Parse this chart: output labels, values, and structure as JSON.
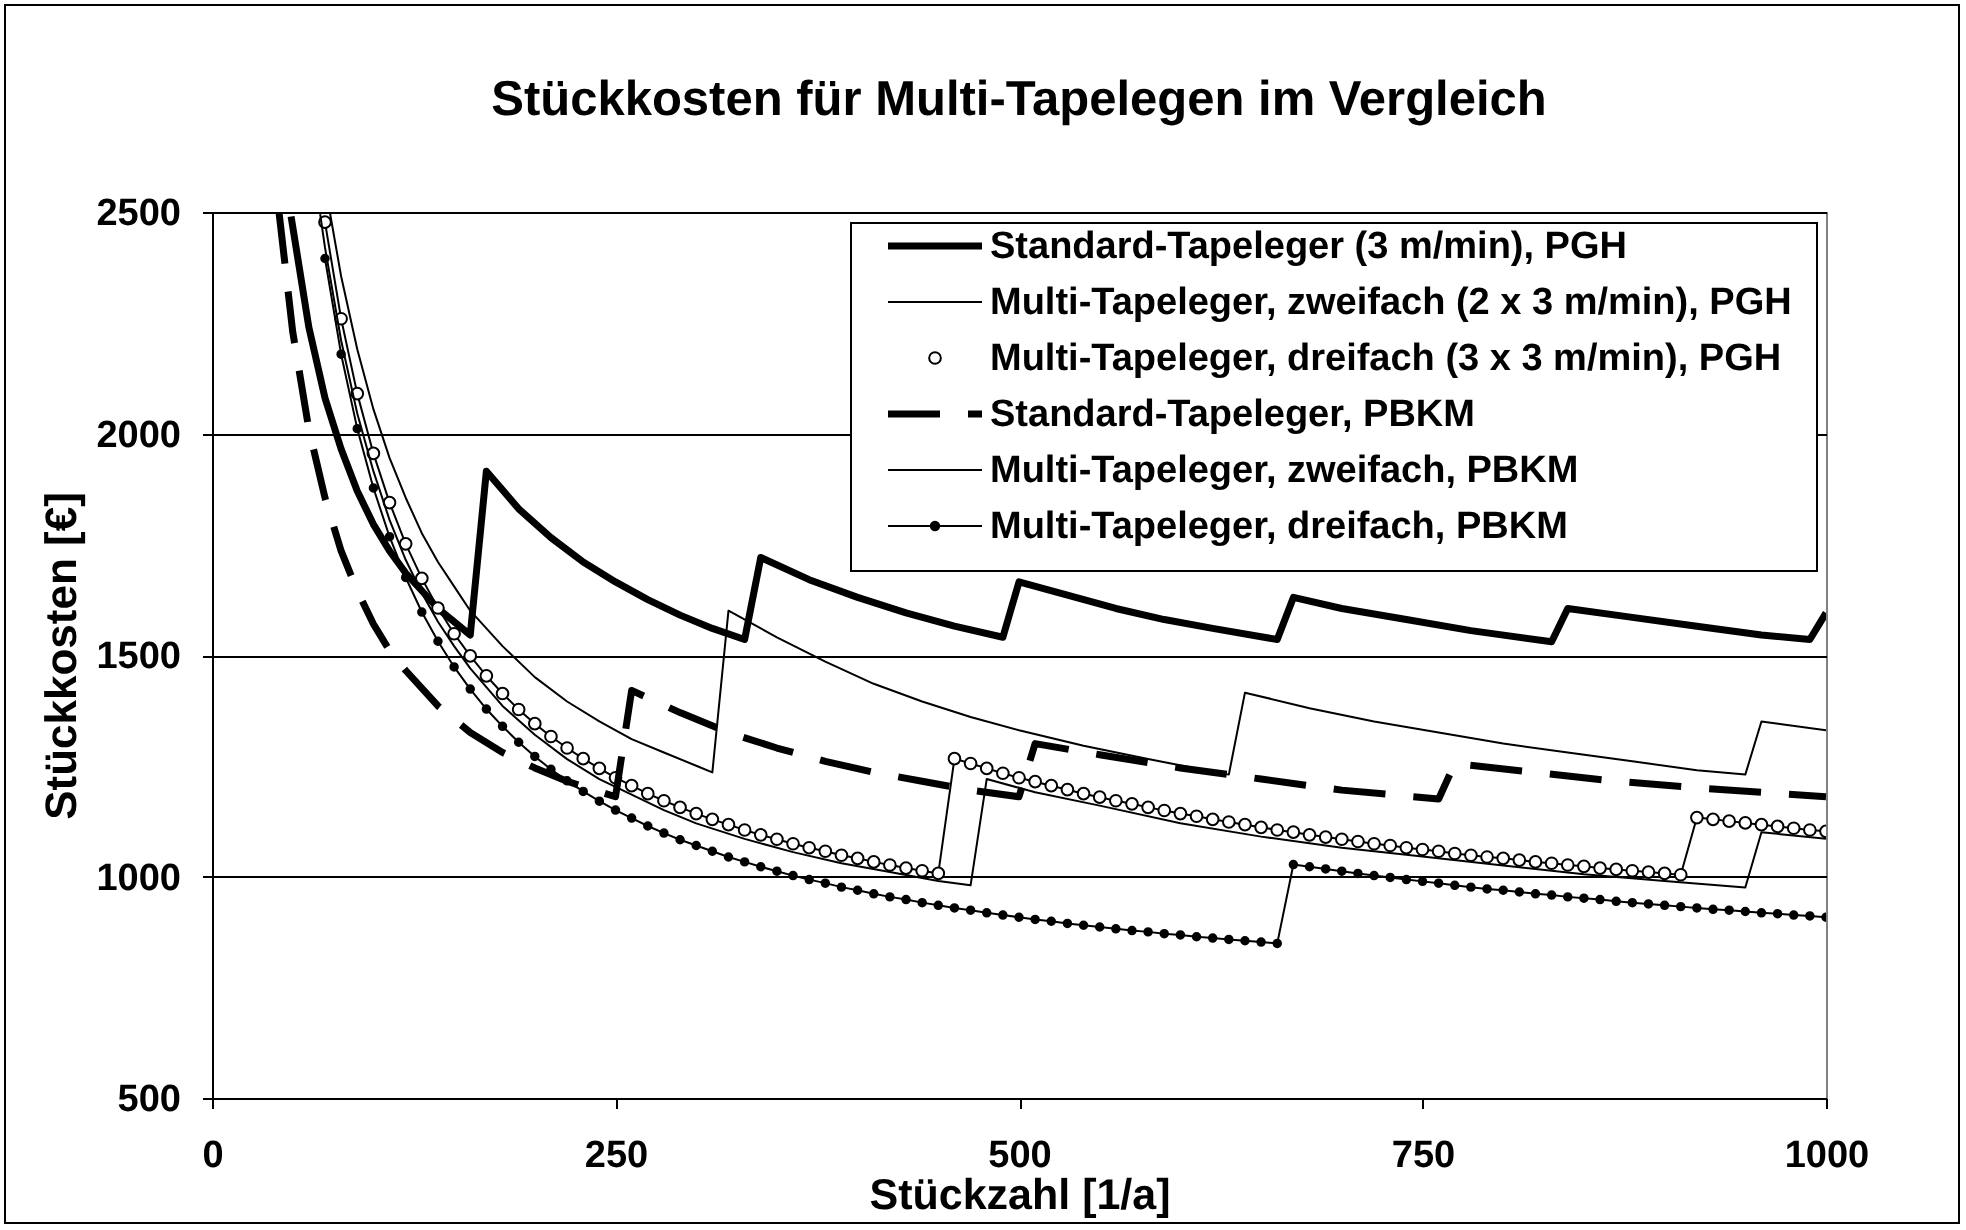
{
  "chart_data": {
    "type": "line",
    "title": "Stückkosten für Multi-Tapelegen im Vergleich",
    "xlabel": "Stückzahl [1/a]",
    "ylabel": "Stückkosten [€]",
    "xlim": [
      0,
      1000
    ],
    "xticks": [
      0,
      250,
      500,
      750,
      1000
    ],
    "ylim": [
      500,
      2500
    ],
    "yticks": [
      500,
      1000,
      1500,
      2000,
      2500
    ],
    "grid": "y",
    "legend": "top right",
    "series": [
      {
        "name": "Standard-Tapeleger (3 m/min), PGH",
        "color": "#000000",
        "x": [
          49,
          60,
          70,
          80,
          90,
          100,
          110,
          120,
          130,
          140,
          150,
          160,
          170,
          190,
          210,
          230,
          250,
          270,
          290,
          310,
          330,
          340,
          370,
          400,
          430,
          460,
          490,
          500,
          530,
          560,
          590,
          620,
          660,
          670,
          700,
          740,
          780,
          830,
          840,
          880,
          920,
          960,
          990,
          1000
        ],
        "values": [
          2490,
          2240,
          2080,
          1965,
          1870,
          1795,
          1735,
          1685,
          1645,
          1605,
          1575,
          1545,
          1915,
          1830,
          1765,
          1710,
          1665,
          1625,
          1590,
          1560,
          1535,
          1720,
          1670,
          1630,
          1595,
          1565,
          1540,
          1665,
          1635,
          1605,
          1580,
          1560,
          1535,
          1630,
          1605,
          1580,
          1555,
          1530,
          1605,
          1585,
          1565,
          1545,
          1535,
          1595
        ]
      },
      {
        "name": "Multi-Tapeleger, zweifach (2 x 3 m/min), PGH",
        "color": "#000000",
        "x": [
          73,
          80,
          90,
          100,
          110,
          120,
          130,
          140,
          150,
          160,
          180,
          200,
          220,
          240,
          260,
          280,
          300,
          310,
          320,
          350,
          380,
          410,
          440,
          470,
          500,
          540,
          580,
          630,
          640,
          680,
          720,
          760,
          800,
          840,
          880,
          920,
          950,
          960,
          1000
        ],
        "values": [
          2500,
          2355,
          2190,
          2055,
          1945,
          1855,
          1775,
          1710,
          1655,
          1600,
          1520,
          1450,
          1395,
          1350,
          1310,
          1280,
          1250,
          1235,
          1600,
          1540,
          1485,
          1435,
          1395,
          1360,
          1330,
          1295,
          1265,
          1230,
          1415,
          1380,
          1350,
          1325,
          1300,
          1280,
          1260,
          1240,
          1230,
          1350,
          1330
        ]
      },
      {
        "name": "Multi-Tapeleger, dreifach (3 x 3 m/min), PGH",
        "color": "#000000",
        "marker": "circle",
        "x": [
          70,
          80,
          90,
          100,
          110,
          120,
          130,
          140,
          150,
          160,
          170,
          180,
          190,
          200,
          210,
          220,
          230,
          240,
          250,
          260,
          270,
          280,
          290,
          300,
          310,
          320,
          330,
          340,
          350,
          360,
          370,
          380,
          390,
          400,
          410,
          420,
          430,
          440,
          450,
          460,
          470,
          480,
          490,
          500,
          510,
          520,
          530,
          540,
          550,
          560,
          570,
          580,
          590,
          600,
          610,
          620,
          630,
          640,
          650,
          660,
          670,
          680,
          690,
          700,
          710,
          720,
          730,
          740,
          750,
          760,
          770,
          780,
          790,
          800,
          810,
          820,
          830,
          840,
          850,
          860,
          870,
          880,
          890,
          900,
          910,
          920,
          930,
          940,
          950,
          960,
          970,
          980,
          990,
          1000
        ],
        "values": [
          2477,
          2259,
          2090,
          1955,
          1844,
          1751,
          1673,
          1606,
          1548,
          1498,
          1453,
          1413,
          1377,
          1345,
          1316,
          1290,
          1266,
          1244,
          1223,
          1205,
          1187,
          1171,
          1156,
          1142,
          1129,
          1117,
          1105,
          1094,
          1084,
          1074,
          1065,
          1057,
          1048,
          1041,
          1033,
          1026,
          1019,
          1013,
          1007,
          1266,
          1255,
          1244,
          1233,
          1223,
          1214,
          1205,
          1196,
          1187,
          1179,
          1171,
          1164,
          1156,
          1149,
          1142,
          1136,
          1129,
          1123,
          1117,
          1111,
          1105,
          1100,
          1094,
          1089,
          1084,
          1079,
          1074,
          1070,
          1065,
          1061,
          1057,
          1052,
          1048,
          1044,
          1041,
          1037,
          1033,
          1030,
          1026,
          1023,
          1019,
          1016,
          1013,
          1010,
          1007,
          1004,
          1133,
          1129,
          1125,
          1121,
          1117,
          1113,
          1109,
          1105,
          1102
        ]
      },
      {
        "name": "Standard-Tapeleger, PBKM",
        "color": "#000000",
        "line_style": "dashed",
        "x": [
          41.5,
          50,
          60,
          70,
          80,
          90,
          100,
          110,
          120,
          140,
          160,
          180,
          200,
          220,
          250,
          260,
          290,
          320,
          350,
          380,
          410,
          440,
          470,
          500,
          510,
          550,
          600,
          650,
          700,
          730,
          760,
          770,
          820,
          870,
          920,
          960,
          1000
        ],
        "values": [
          2500,
          2230,
          2010,
          1855,
          1735,
          1645,
          1570,
          1510,
          1465,
          1385,
          1325,
          1280,
          1245,
          1215,
          1180,
          1420,
          1370,
          1325,
          1290,
          1260,
          1235,
          1215,
          1195,
          1180,
          1300,
          1275,
          1245,
          1220,
          1195,
          1185,
          1175,
          1255,
          1235,
          1215,
          1200,
          1190,
          1180
        ]
      },
      {
        "name": "Multi-Tapeleger, zweifach, PBKM",
        "color": "#000000",
        "x": [
          67,
          70,
          80,
          90,
          100,
          110,
          120,
          130,
          140,
          150,
          160,
          180,
          200,
          220,
          240,
          260,
          280,
          300,
          330,
          360,
          390,
          420,
          450,
          470,
          480,
          510,
          550,
          600,
          650,
          700,
          750,
          800,
          850,
          900,
          950,
          960,
          1000
        ],
        "values": [
          2495,
          2420,
          2210,
          2045,
          1915,
          1805,
          1715,
          1640,
          1575,
          1520,
          1470,
          1385,
          1320,
          1265,
          1220,
          1185,
          1150,
          1120,
          1085,
          1055,
          1030,
          1010,
          990,
          980,
          1220,
          1190,
          1160,
          1120,
          1090,
          1065,
          1045,
          1025,
          1005,
          990,
          975,
          1100,
          1085
        ]
      },
      {
        "name": "Multi-Tapeleger, dreifach, PBKM",
        "color": "#000000",
        "marker": "circle",
        "x": [
          70,
          80,
          90,
          100,
          110,
          120,
          130,
          140,
          150,
          160,
          170,
          180,
          190,
          200,
          210,
          220,
          230,
          240,
          250,
          260,
          270,
          280,
          290,
          300,
          310,
          320,
          330,
          340,
          350,
          360,
          370,
          380,
          390,
          400,
          410,
          420,
          430,
          440,
          450,
          460,
          470,
          480,
          490,
          500,
          510,
          520,
          530,
          540,
          550,
          560,
          570,
          580,
          590,
          600,
          610,
          620,
          630,
          640,
          650,
          660,
          670,
          680,
          690,
          700,
          710,
          720,
          730,
          740,
          750,
          760,
          770,
          780,
          790,
          800,
          810,
          820,
          830,
          840,
          850,
          860,
          870,
          880,
          890,
          900,
          910,
          920,
          930,
          940,
          950,
          960,
          970,
          980,
          990,
          1000
        ],
        "values": [
          2395,
          2179,
          2011,
          1877,
          1767,
          1675,
          1597,
          1531,
          1473,
          1423,
          1378,
          1339,
          1303,
          1271,
          1242,
          1216,
          1192,
          1170,
          1150,
          1132,
          1114,
          1098,
          1083,
          1070,
          1057,
          1044,
          1033,
          1022,
          1012,
          1002,
          993,
          985,
          976,
          969,
          961,
          954,
          948,
          941,
          935,
          929,
          924,
          918,
          913,
          908,
          903,
          899,
          894,
          890,
          886,
          882,
          878,
          875,
          871,
          868,
          864,
          861,
          858,
          855,
          852,
          849,
          1027,
          1022,
          1017,
          1012,
          1007,
          1002,
          998,
          993,
          989,
          985,
          980,
          976,
          972,
          969,
          965,
          961,
          958,
          954,
          951,
          948,
          944,
          941,
          938,
          935,
          932,
          929,
          926,
          924,
          921,
          918,
          916,
          913,
          911,
          908
        ]
      }
    ]
  }
}
